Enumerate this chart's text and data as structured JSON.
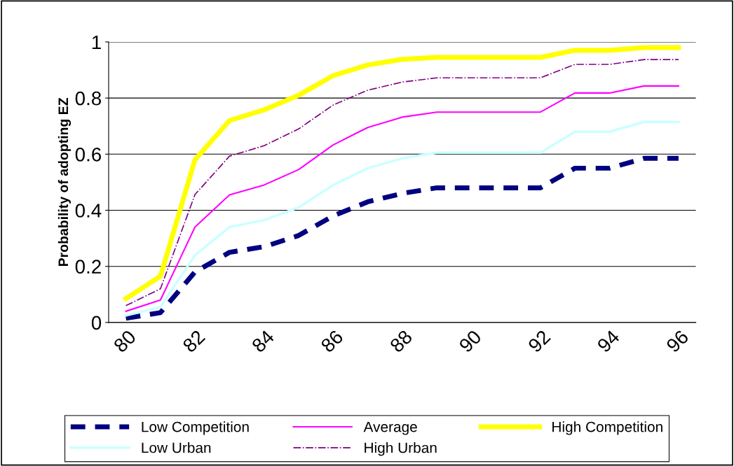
{
  "chart_data": {
    "type": "line",
    "ylabel": "Probability of adopting EZ",
    "categories": [
      "80",
      null,
      "82",
      null,
      "84",
      null,
      "86",
      null,
      "88",
      null,
      "90",
      null,
      "92",
      null,
      "94",
      null,
      "96"
    ],
    "series": [
      {
        "name": "Low Competition",
        "color": "#000080",
        "line_style": "dashed",
        "values": [
          0.015,
          0.035,
          0.18,
          0.25,
          0.27,
          0.31,
          0.38,
          0.43,
          0.46,
          0.48,
          0.48,
          0.48,
          0.48,
          0.55,
          0.55,
          0.585,
          0.585
        ]
      },
      {
        "name": "Average",
        "color": "#ff00ff",
        "line_style": "solid",
        "values": [
          0.04,
          0.08,
          0.34,
          0.455,
          0.49,
          0.545,
          0.633,
          0.695,
          0.732,
          0.75,
          0.75,
          0.75,
          0.75,
          0.818,
          0.818,
          0.843,
          0.843
        ]
      },
      {
        "name": "High Competition",
        "color": "#ffff00",
        "line_style": "solid",
        "values": [
          0.085,
          0.165,
          0.58,
          0.72,
          0.758,
          0.81,
          0.88,
          0.918,
          0.938,
          0.945,
          0.945,
          0.945,
          0.945,
          0.97,
          0.97,
          0.98,
          0.98
        ]
      },
      {
        "name": "Low Urban",
        "color": "#ccffff",
        "line_style": "solid",
        "values": [
          0.025,
          0.055,
          0.24,
          0.34,
          0.365,
          0.41,
          0.49,
          0.55,
          0.585,
          0.605,
          0.605,
          0.605,
          0.605,
          0.68,
          0.68,
          0.715,
          0.715
        ]
      },
      {
        "name": "High Urban",
        "color": "#800080",
        "line_style": "dashdot",
        "values": [
          0.06,
          0.12,
          0.456,
          0.593,
          0.63,
          0.69,
          0.775,
          0.828,
          0.857,
          0.872,
          0.872,
          0.872,
          0.872,
          0.92,
          0.92,
          0.937,
          0.937
        ]
      }
    ],
    "ylim": [
      0,
      1
    ],
    "yticks": [
      0,
      0.2,
      0.4,
      0.6,
      0.8,
      1
    ],
    "grid": "y",
    "legend": "bottom"
  }
}
